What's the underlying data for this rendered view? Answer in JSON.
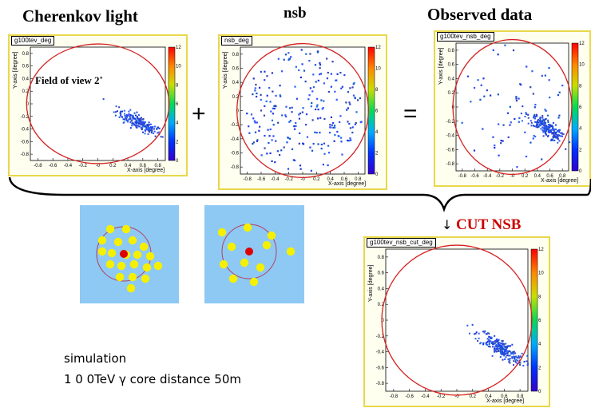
{
  "headings": {
    "cherenkov": "Cherenkov light",
    "nsb": "nsb",
    "observed": "Observed data"
  },
  "operators": {
    "plus": "+",
    "equals": "="
  },
  "fov_label": "Field of view 2˚",
  "cut_label": "CUT NSB",
  "cut_arrow": "↓",
  "simulation": {
    "line1": "simulation",
    "line2": "1 0 0TeV  γ  core distance 50m"
  },
  "panels": [
    {
      "id": "cherenkov",
      "title": "g100tev_deg"
    },
    {
      "id": "nsb",
      "title": "nsb_deg"
    },
    {
      "id": "observed",
      "title": "g100tev_nsb_deg"
    },
    {
      "id": "cut",
      "title": "g100tev_nsb_cut_deg"
    }
  ],
  "axes": {
    "xlabel": "X-axis [degree]",
    "ylabel": "Y-axis [degree]",
    "xticks": [
      "-0.8",
      "-0.6",
      "-0.4",
      "-0.2",
      "-0",
      "0.2",
      "0.4",
      "0.6",
      "0.8"
    ],
    "yticks": [
      "0.8",
      "0.6",
      "0.4",
      "0.2",
      "0",
      "-0.2",
      "-0.4",
      "-0.6",
      "-0.8"
    ],
    "zticks": [
      "12",
      "10",
      "8",
      "6",
      "4",
      "2",
      "0"
    ]
  },
  "colors": {
    "circle": "#d42020",
    "frame": "#e8d84a",
    "dots": "#2244dd",
    "cut_text": "#cc0000",
    "diagram_bg": "#8ec9f4",
    "pe_dot": "#f5f000",
    "center_dot": "#dd0000"
  }
}
